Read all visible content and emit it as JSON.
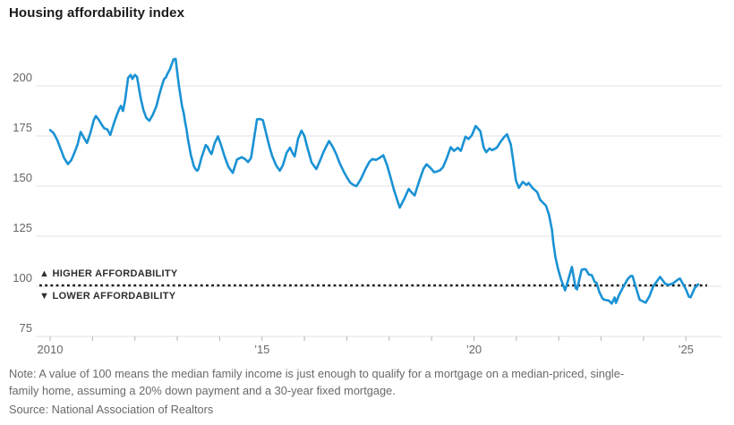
{
  "title": "Housing affordability index",
  "note": {
    "line1": "Note: A value of 100 means the median family income is just enough to qualify for a mortgage on a median-priced, single-",
    "line2": "family home, assuming a 20% down payment and a 30-year fixed mortgage."
  },
  "source": "Source: National Association of Realtors",
  "annotations": {
    "above_line": "▲ HIGHER AFFORDABILITY",
    "below_line": "▼ LOWER AFFORDABILITY"
  },
  "colors": {
    "line": "#1a92d4",
    "grid": "#e2e2e2",
    "tick": "#b3b3b3",
    "axis_text": "#666666",
    "reference": "#1a1a1a",
    "annotation_text": "#2e2e2e",
    "title_text": "#1a1a1a",
    "note_text": "#696969",
    "background": "#ffffff"
  },
  "chart_data": {
    "type": "line",
    "title": "Housing affordability index",
    "xlabel": "",
    "ylabel": "",
    "ylim": [
      75,
      220
    ],
    "xlim": [
      2010,
      2025.85
    ],
    "grid": "horizontal",
    "legend": "none",
    "y_ticks": [
      200,
      175,
      150,
      125,
      100,
      75
    ],
    "x_ticks_years": [
      2010,
      2011,
      2012,
      2013,
      2014,
      2015,
      2016,
      2017,
      2018,
      2019,
      2020,
      2021,
      2022,
      2023,
      2024,
      2025
    ],
    "x_tick_labels": [
      {
        "year": 2010,
        "label": "2010"
      },
      {
        "year": 2015,
        "label": "’15"
      },
      {
        "year": 2020,
        "label": "’20"
      },
      {
        "year": 2025,
        "label": "’25"
      }
    ],
    "reference_line": {
      "value": 100,
      "style": "dotted",
      "annotation_above": "▲ HIGHER AFFORDABILITY",
      "annotation_below": "▼ LOWER AFFORDABILITY"
    },
    "series": [
      {
        "name": "Housing affordability index",
        "points": [
          [
            2010.0,
            178
          ],
          [
            2010.08,
            176.5
          ],
          [
            2010.17,
            173
          ],
          [
            2010.25,
            168.5
          ],
          [
            2010.33,
            164
          ],
          [
            2010.42,
            161
          ],
          [
            2010.5,
            163
          ],
          [
            2010.58,
            167
          ],
          [
            2010.65,
            171
          ],
          [
            2010.72,
            177
          ],
          [
            2010.8,
            174
          ],
          [
            2010.87,
            171.5
          ],
          [
            2010.95,
            176.5
          ],
          [
            2011.03,
            183
          ],
          [
            2011.08,
            185
          ],
          [
            2011.15,
            183
          ],
          [
            2011.22,
            180.5
          ],
          [
            2011.28,
            178.8
          ],
          [
            2011.35,
            178.3
          ],
          [
            2011.42,
            175.5
          ],
          [
            2011.5,
            181
          ],
          [
            2011.56,
            184.7
          ],
          [
            2011.63,
            188.5
          ],
          [
            2011.67,
            190
          ],
          [
            2011.72,
            187.5
          ],
          [
            2011.77,
            193
          ],
          [
            2011.84,
            204
          ],
          [
            2011.9,
            205.5
          ],
          [
            2011.94,
            203.5
          ],
          [
            2012.0,
            205.5
          ],
          [
            2012.05,
            204.5
          ],
          [
            2012.13,
            194.5
          ],
          [
            2012.2,
            188
          ],
          [
            2012.27,
            184
          ],
          [
            2012.34,
            182.6
          ],
          [
            2012.42,
            185.5
          ],
          [
            2012.51,
            190
          ],
          [
            2012.58,
            196
          ],
          [
            2012.65,
            201
          ],
          [
            2012.69,
            203.5
          ],
          [
            2012.73,
            204.2
          ],
          [
            2012.76,
            205.7
          ],
          [
            2012.83,
            208.5
          ],
          [
            2012.91,
            213.2
          ],
          [
            2012.96,
            213.5
          ],
          [
            2013.01,
            205
          ],
          [
            2013.04,
            200
          ],
          [
            2013.08,
            194.5
          ],
          [
            2013.11,
            190
          ],
          [
            2013.15,
            186.5
          ],
          [
            2013.18,
            182.5
          ],
          [
            2013.22,
            178
          ],
          [
            2013.25,
            173.5
          ],
          [
            2013.29,
            169
          ],
          [
            2013.32,
            165.5
          ],
          [
            2013.36,
            162.5
          ],
          [
            2013.39,
            160
          ],
          [
            2013.43,
            158.5
          ],
          [
            2013.47,
            157.7
          ],
          [
            2013.5,
            158.5
          ],
          [
            2013.57,
            164
          ],
          [
            2013.6,
            166
          ],
          [
            2013.67,
            170.5
          ],
          [
            2013.71,
            169.7
          ],
          [
            2013.78,
            166.7
          ],
          [
            2013.81,
            166
          ],
          [
            2013.88,
            171.3
          ],
          [
            2013.96,
            174.8
          ],
          [
            2014.04,
            170
          ],
          [
            2014.12,
            164.5
          ],
          [
            2014.21,
            159.5
          ],
          [
            2014.31,
            156.6
          ],
          [
            2014.41,
            163.3
          ],
          [
            2014.52,
            164.4
          ],
          [
            2014.6,
            163.5
          ],
          [
            2014.67,
            162
          ],
          [
            2014.74,
            164
          ],
          [
            2014.8,
            172.2
          ],
          [
            2014.88,
            183.3
          ],
          [
            2014.95,
            183.5
          ],
          [
            2015.02,
            182.9
          ],
          [
            2015.1,
            176
          ],
          [
            2015.17,
            170
          ],
          [
            2015.24,
            165
          ],
          [
            2015.33,
            160.4
          ],
          [
            2015.42,
            157.7
          ],
          [
            2015.49,
            160.4
          ],
          [
            2015.58,
            166.6
          ],
          [
            2015.66,
            169.2
          ],
          [
            2015.72,
            166.5
          ],
          [
            2015.77,
            164.8
          ],
          [
            2015.85,
            173.6
          ],
          [
            2015.93,
            177.7
          ],
          [
            2016.0,
            175
          ],
          [
            2016.07,
            169.2
          ],
          [
            2016.17,
            161.8
          ],
          [
            2016.28,
            158.5
          ],
          [
            2016.38,
            163.3
          ],
          [
            2016.45,
            167
          ],
          [
            2016.52,
            170
          ],
          [
            2016.58,
            172.5
          ],
          [
            2016.67,
            169.5
          ],
          [
            2016.75,
            166
          ],
          [
            2016.83,
            161.5
          ],
          [
            2016.92,
            157.5
          ],
          [
            2017.0,
            154.5
          ],
          [
            2017.08,
            151.8
          ],
          [
            2017.16,
            150.5
          ],
          [
            2017.23,
            150
          ],
          [
            2017.33,
            153.5
          ],
          [
            2017.44,
            158.5
          ],
          [
            2017.53,
            162
          ],
          [
            2017.6,
            163.5
          ],
          [
            2017.69,
            163.1
          ],
          [
            2017.78,
            164.2
          ],
          [
            2017.86,
            165.4
          ],
          [
            2017.95,
            160.5
          ],
          [
            2018.03,
            154.5
          ],
          [
            2018.11,
            148.3
          ],
          [
            2018.19,
            143
          ],
          [
            2018.25,
            139.3
          ],
          [
            2018.36,
            143.8
          ],
          [
            2018.46,
            148.6
          ],
          [
            2018.53,
            146.8
          ],
          [
            2018.6,
            145.3
          ],
          [
            2018.71,
            152.7
          ],
          [
            2018.81,
            158.7
          ],
          [
            2018.88,
            160.9
          ],
          [
            2018.99,
            158.7
          ],
          [
            2019.06,
            156.9
          ],
          [
            2019.13,
            157.3
          ],
          [
            2019.2,
            157.9
          ],
          [
            2019.27,
            159.4
          ],
          [
            2019.36,
            164
          ],
          [
            2019.45,
            169.4
          ],
          [
            2019.53,
            167.6
          ],
          [
            2019.62,
            169.1
          ],
          [
            2019.69,
            167.6
          ],
          [
            2019.8,
            174.7
          ],
          [
            2019.87,
            173.5
          ],
          [
            2019.95,
            175.3
          ],
          [
            2020.04,
            180
          ],
          [
            2020.15,
            177.4
          ],
          [
            2020.23,
            169.2
          ],
          [
            2020.29,
            166.9
          ],
          [
            2020.37,
            168.8
          ],
          [
            2020.43,
            167.9
          ],
          [
            2020.54,
            169.2
          ],
          [
            2020.63,
            172.2
          ],
          [
            2020.71,
            174.4
          ],
          [
            2020.78,
            175.9
          ],
          [
            2020.87,
            170.7
          ],
          [
            2020.92,
            163.3
          ],
          [
            2020.99,
            152.8
          ],
          [
            2021.06,
            149.1
          ],
          [
            2021.15,
            152.1
          ],
          [
            2021.24,
            150.6
          ],
          [
            2021.29,
            151.6
          ],
          [
            2021.38,
            149.1
          ],
          [
            2021.49,
            147
          ],
          [
            2021.56,
            143.2
          ],
          [
            2021.63,
            141.7
          ],
          [
            2021.7,
            140.2
          ],
          [
            2021.77,
            135.7
          ],
          [
            2021.84,
            128.3
          ],
          [
            2021.87,
            122.3
          ],
          [
            2021.92,
            114.8
          ],
          [
            2021.98,
            108.9
          ],
          [
            2022.05,
            103.7
          ],
          [
            2022.12,
            99.7
          ],
          [
            2022.15,
            98
          ],
          [
            2022.23,
            103.7
          ],
          [
            2022.31,
            109.7
          ],
          [
            2022.4,
            99.2
          ],
          [
            2022.43,
            98.5
          ],
          [
            2022.54,
            108.2
          ],
          [
            2022.6,
            108.6
          ],
          [
            2022.64,
            108.4
          ],
          [
            2022.71,
            105.9
          ],
          [
            2022.78,
            105.6
          ],
          [
            2022.85,
            102.2
          ],
          [
            2022.89,
            101.9
          ],
          [
            2022.96,
            97
          ],
          [
            2023.03,
            94
          ],
          [
            2023.07,
            93.3
          ],
          [
            2023.18,
            92.9
          ],
          [
            2023.25,
            91.4
          ],
          [
            2023.32,
            94.4
          ],
          [
            2023.35,
            91.7
          ],
          [
            2023.42,
            95.5
          ],
          [
            2023.49,
            98.5
          ],
          [
            2023.63,
            103.7
          ],
          [
            2023.7,
            105.2
          ],
          [
            2023.74,
            105.2
          ],
          [
            2023.82,
            99.5
          ],
          [
            2023.91,
            93.3
          ],
          [
            2024.05,
            91.8
          ],
          [
            2024.14,
            95
          ],
          [
            2024.23,
            100
          ],
          [
            2024.39,
            104.7
          ],
          [
            2024.51,
            101.4
          ],
          [
            2024.58,
            100.7
          ],
          [
            2024.69,
            101.4
          ],
          [
            2024.83,
            103.6
          ],
          [
            2024.86,
            103.9
          ],
          [
            2025.0,
            98.5
          ],
          [
            2025.07,
            94.8
          ],
          [
            2025.11,
            94.5
          ],
          [
            2025.21,
            99.2
          ],
          [
            2025.29,
            101
          ]
        ]
      }
    ]
  }
}
